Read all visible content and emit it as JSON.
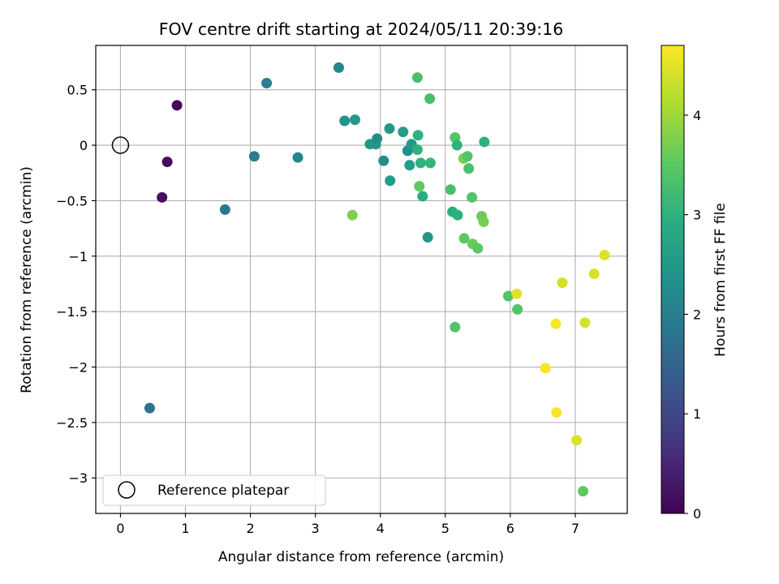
{
  "chart_data": {
    "type": "scatter",
    "title": "FOV centre drift starting at 2024/05/11 20:39:16",
    "xlabel": "Angular distance from reference (arcmin)",
    "ylabel": "Rotation from reference (arcmin)",
    "xlim": [
      -0.38,
      7.8
    ],
    "ylim": [
      -3.32,
      0.9
    ],
    "xticks": [
      0,
      1,
      2,
      3,
      4,
      5,
      6,
      7
    ],
    "yticks": [
      -3.0,
      -2.5,
      -2.0,
      -1.5,
      -1.0,
      -0.5,
      0.0,
      0.5
    ],
    "grid": true,
    "colorbar": {
      "label": "Hours from first FF file",
      "range": [
        0,
        4.7
      ],
      "ticks": [
        0,
        1,
        2,
        3,
        4
      ],
      "colormap": "viridis"
    },
    "legend": {
      "location": "lower-left",
      "entries": [
        {
          "label": "Reference platepar",
          "marker": "open-circle"
        }
      ]
    },
    "reference_point": {
      "x": 0,
      "y": 0
    },
    "points": [
      {
        "x": 0.87,
        "y": 0.36,
        "hours": 0.1
      },
      {
        "x": 0.72,
        "y": -0.15,
        "hours": 0.15
      },
      {
        "x": 0.64,
        "y": -0.47,
        "hours": 0.2
      },
      {
        "x": 0.45,
        "y": -2.37,
        "hours": 1.8
      },
      {
        "x": 1.61,
        "y": -0.58,
        "hours": 1.9
      },
      {
        "x": 2.06,
        "y": -0.1,
        "hours": 1.95
      },
      {
        "x": 2.25,
        "y": 0.56,
        "hours": 2.0
      },
      {
        "x": 2.73,
        "y": -0.11,
        "hours": 2.1
      },
      {
        "x": 3.36,
        "y": 0.7,
        "hours": 2.15
      },
      {
        "x": 3.45,
        "y": 0.22,
        "hours": 2.4
      },
      {
        "x": 3.61,
        "y": 0.23,
        "hours": 2.5
      },
      {
        "x": 3.57,
        "y": -0.63,
        "hours": 3.75
      },
      {
        "x": 3.84,
        "y": 0.01,
        "hours": 2.5
      },
      {
        "x": 3.93,
        "y": 0.01,
        "hours": 2.45
      },
      {
        "x": 3.95,
        "y": 0.06,
        "hours": 2.3
      },
      {
        "x": 4.05,
        "y": -0.14,
        "hours": 2.3
      },
      {
        "x": 4.14,
        "y": 0.15,
        "hours": 2.5
      },
      {
        "x": 4.15,
        "y": -0.32,
        "hours": 2.6
      },
      {
        "x": 4.35,
        "y": 0.12,
        "hours": 2.6
      },
      {
        "x": 4.42,
        "y": -0.05,
        "hours": 2.3
      },
      {
        "x": 4.48,
        "y": 0.01,
        "hours": 2.5
      },
      {
        "x": 4.45,
        "y": -0.18,
        "hours": 2.6
      },
      {
        "x": 4.57,
        "y": 0.61,
        "hours": 3.3
      },
      {
        "x": 4.57,
        "y": -0.04,
        "hours": 3.0
      },
      {
        "x": 4.58,
        "y": 0.09,
        "hours": 3.0
      },
      {
        "x": 4.6,
        "y": -0.37,
        "hours": 3.5
      },
      {
        "x": 4.62,
        "y": -0.16,
        "hours": 3.0
      },
      {
        "x": 4.65,
        "y": -0.46,
        "hours": 2.9
      },
      {
        "x": 4.73,
        "y": -0.83,
        "hours": 2.5
      },
      {
        "x": 4.76,
        "y": 0.42,
        "hours": 3.3
      },
      {
        "x": 4.77,
        "y": -0.16,
        "hours": 3.1
      },
      {
        "x": 5.08,
        "y": -0.4,
        "hours": 3.3
      },
      {
        "x": 5.11,
        "y": -0.6,
        "hours": 2.95
      },
      {
        "x": 5.15,
        "y": 0.07,
        "hours": 3.4
      },
      {
        "x": 5.15,
        "y": -1.64,
        "hours": 3.4
      },
      {
        "x": 5.18,
        "y": 0.0,
        "hours": 3.0
      },
      {
        "x": 5.19,
        "y": -0.63,
        "hours": 3.0
      },
      {
        "x": 5.28,
        "y": -0.12,
        "hours": 3.7
      },
      {
        "x": 5.29,
        "y": -0.84,
        "hours": 3.5
      },
      {
        "x": 5.34,
        "y": -0.1,
        "hours": 3.4
      },
      {
        "x": 5.36,
        "y": -0.21,
        "hours": 3.3
      },
      {
        "x": 5.41,
        "y": -0.47,
        "hours": 3.4
      },
      {
        "x": 5.42,
        "y": -0.89,
        "hours": 3.6
      },
      {
        "x": 5.5,
        "y": -0.93,
        "hours": 3.5
      },
      {
        "x": 5.56,
        "y": -0.64,
        "hours": 3.6
      },
      {
        "x": 5.59,
        "y": -0.69,
        "hours": 3.7
      },
      {
        "x": 5.6,
        "y": 0.03,
        "hours": 3.0
      },
      {
        "x": 5.97,
        "y": -1.36,
        "hours": 3.4
      },
      {
        "x": 6.1,
        "y": -1.34,
        "hours": 4.5
      },
      {
        "x": 6.11,
        "y": -1.48,
        "hours": 3.4
      },
      {
        "x": 6.54,
        "y": -2.01,
        "hours": 4.65
      },
      {
        "x": 6.7,
        "y": -1.61,
        "hours": 4.65
      },
      {
        "x": 6.71,
        "y": -2.41,
        "hours": 4.65
      },
      {
        "x": 6.8,
        "y": -1.24,
        "hours": 4.4
      },
      {
        "x": 7.02,
        "y": -2.66,
        "hours": 4.45
      },
      {
        "x": 7.12,
        "y": -3.12,
        "hours": 3.5
      },
      {
        "x": 7.15,
        "y": -1.6,
        "hours": 4.4
      },
      {
        "x": 7.29,
        "y": -1.16,
        "hours": 4.4
      },
      {
        "x": 7.45,
        "y": -0.99,
        "hours": 4.45
      }
    ]
  }
}
